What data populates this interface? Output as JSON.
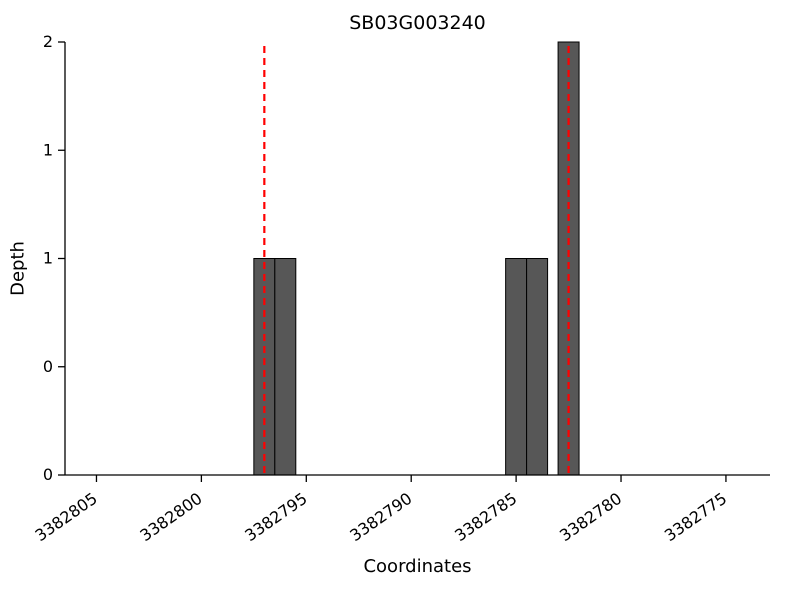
{
  "title": "SB03G003240",
  "xlabel": "Coordinates",
  "ylabel": "Depth",
  "chart_data": {
    "type": "bar",
    "title": "SB03G003240",
    "xlabel": "Coordinates",
    "ylabel": "Depth",
    "xlim": [
      3382806.5,
      3382772.9
    ],
    "ylim": [
      0,
      2
    ],
    "x_axis_reversed": true,
    "grid": false,
    "x_ticks": [
      3382805,
      3382800,
      3382795,
      3382790,
      3382785,
      3382780,
      3382775
    ],
    "x_tick_labels": [
      "3382805",
      "3382800",
      "3382795",
      "3382790",
      "3382785",
      "3382780",
      "3382775"
    ],
    "y_ticks": [
      0,
      0.5,
      1,
      1.5,
      2
    ],
    "y_tick_labels": [
      "0",
      "0",
      "1",
      "1",
      "2"
    ],
    "bars": [
      {
        "x": 3382797,
        "height": 1
      },
      {
        "x": 3382796,
        "height": 1
      },
      {
        "x": 3382785,
        "height": 1
      },
      {
        "x": 3382784,
        "height": 1
      },
      {
        "x": 3382782.5,
        "height": 2
      }
    ],
    "bar_width": 1,
    "bar_color": "#575757",
    "bar_edge_color": "#000000",
    "vlines": [
      3382797,
      3382782.5
    ],
    "vline_color": "#ff0000",
    "vline_style": "dashed",
    "axis_color": "#000000"
  }
}
